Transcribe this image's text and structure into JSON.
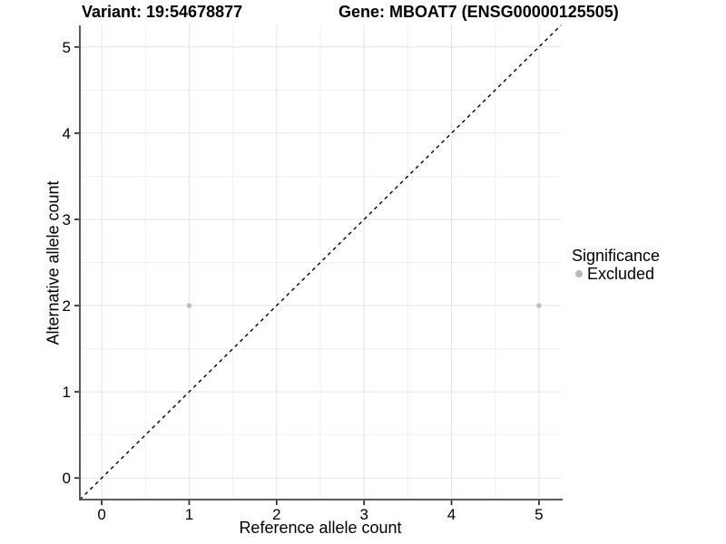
{
  "chart_data": {
    "type": "scatter",
    "title_variant": "Variant: 19:54678877",
    "title_gene": "Gene: MBOAT7 (ENSG00000125505)",
    "xlabel": "Reference allele count",
    "ylabel": "Alternative allele count",
    "xlim": [
      -0.25,
      5.25
    ],
    "ylim": [
      -0.25,
      5.25
    ],
    "x_ticks": [
      0,
      1,
      2,
      3,
      4,
      5
    ],
    "y_ticks": [
      0,
      1,
      2,
      3,
      4,
      5
    ],
    "x_minor": [
      0.5,
      1.5,
      2.5,
      3.5,
      4.5
    ],
    "y_minor": [
      0.5,
      1.5,
      2.5,
      3.5,
      4.5
    ],
    "grid": true,
    "legend_position": "right",
    "series": [
      {
        "name": "Excluded",
        "color": "#bdbdbd",
        "point_radius": 2.8,
        "points": [
          {
            "x": 1,
            "y": 2
          },
          {
            "x": 5,
            "y": 2
          }
        ]
      }
    ],
    "reference_line": {
      "style": "dashed",
      "color": "#000000",
      "from": [
        -0.25,
        -0.25
      ],
      "to": [
        5.25,
        5.25
      ]
    },
    "legend": {
      "title": "Significance",
      "entries": [
        {
          "label": "Excluded",
          "color": "#b8b8b8"
        }
      ]
    },
    "colors": {
      "background": "#ffffff",
      "grid_major": "#e3e3e3",
      "grid_minor": "#f0f0f0",
      "axis_line": "#595959",
      "tick_mark": "#333333",
      "tick_label": "#000000"
    }
  }
}
